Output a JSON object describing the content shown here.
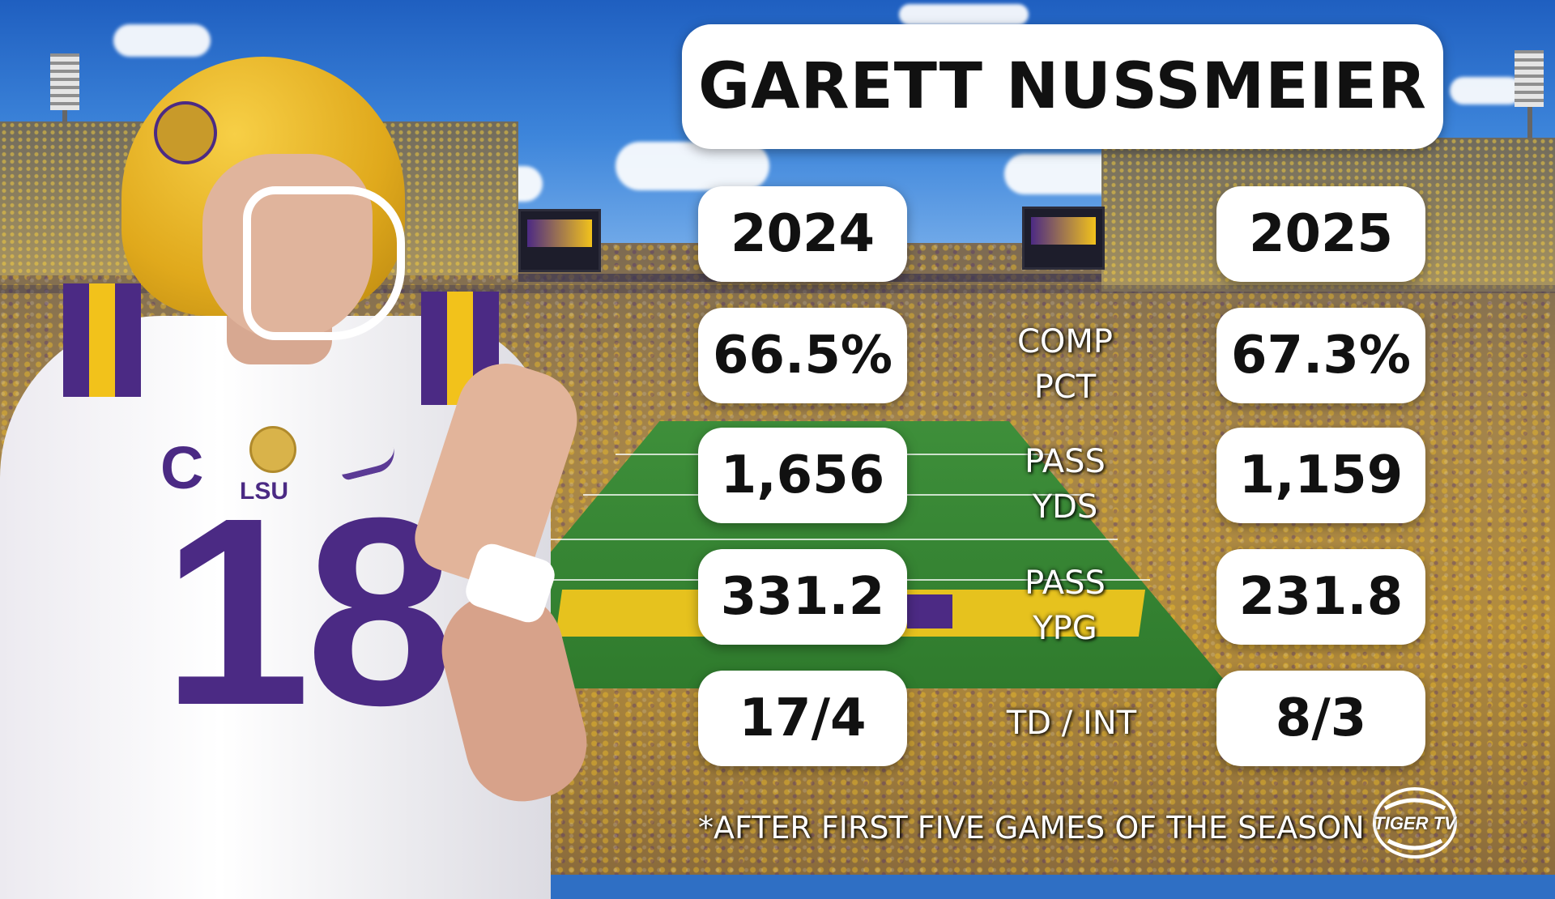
{
  "title": "GARETT NUSSMEIER",
  "years": {
    "left": "2024",
    "right": "2025"
  },
  "stats": [
    {
      "label_line1": "COMP",
      "label_line2": "PCT",
      "left": "66.5%",
      "right": "67.3%"
    },
    {
      "label_line1": "PASS",
      "label_line2": "YDS",
      "left": "1,656",
      "right": "1,159"
    },
    {
      "label_line1": "PASS",
      "label_line2": "YPG",
      "left": "331.2",
      "right": "231.8"
    },
    {
      "label_line1": "TD / INT",
      "label_line2": "",
      "left": "17/4",
      "right": "8/3"
    }
  ],
  "footnote": "*AFTER FIRST FIVE GAMES OF THE SEASON",
  "logo": {
    "text": "TIGER TV",
    "icon": "tiger-tv-logo-icon"
  },
  "jersey": {
    "number": "18",
    "captain_mark": "C",
    "wordmark": "LSU"
  },
  "colors": {
    "purple": "#4b2a84",
    "gold": "#f2c21b",
    "card": "#ffffff"
  }
}
